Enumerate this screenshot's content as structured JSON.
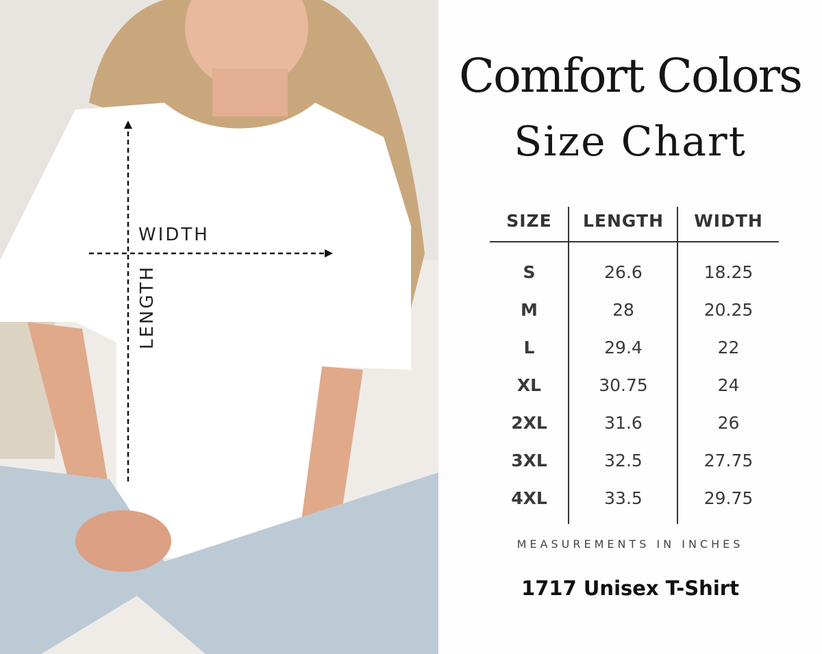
{
  "header": {
    "brand": "Comfort Colors",
    "subtitle": "Size Chart"
  },
  "diagram": {
    "width_label": "WIDTH",
    "length_label": "LENGTH"
  },
  "table": {
    "columns": [
      "SIZE",
      "LENGTH",
      "WIDTH"
    ],
    "rows": [
      {
        "size": "S",
        "length": "26.6",
        "width": "18.25"
      },
      {
        "size": "M",
        "length": "28",
        "width": "20.25"
      },
      {
        "size": "L",
        "length": "29.4",
        "width": "22"
      },
      {
        "size": "XL",
        "length": "30.75",
        "width": "24"
      },
      {
        "size": "2XL",
        "length": "31.6",
        "width": "26"
      },
      {
        "size": "3XL",
        "length": "32.5",
        "width": "27.75"
      },
      {
        "size": "4XL",
        "length": "33.5",
        "width": "29.75"
      }
    ]
  },
  "footer": {
    "note": "MEASUREMENTS IN INCHES",
    "product": "1717 Unisex T-Shirt"
  }
}
